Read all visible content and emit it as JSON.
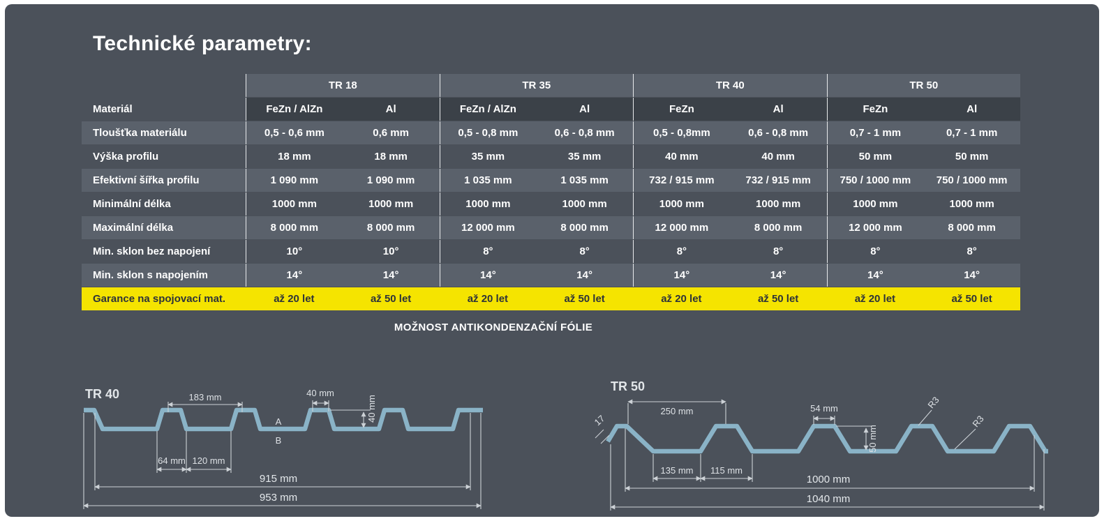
{
  "title": "Technické parametry:",
  "table": {
    "material_label": "Materiál",
    "groups": [
      {
        "name": "TR 18",
        "cols": [
          "FeZn / AlZn",
          "Al"
        ]
      },
      {
        "name": "TR 35",
        "cols": [
          "FeZn / AlZn",
          "Al"
        ]
      },
      {
        "name": "TR 40",
        "cols": [
          "FeZn",
          "Al"
        ]
      },
      {
        "name": "TR 50",
        "cols": [
          "FeZn",
          "Al"
        ]
      }
    ],
    "rows": [
      {
        "label": "Tloušťka materiálu",
        "values": [
          "0,5 - 0,6 mm",
          "0,6 mm",
          "0,5 - 0,8 mm",
          "0,6 - 0,8 mm",
          "0,5 - 0,8mm",
          "0,6 - 0,8 mm",
          "0,7 - 1 mm",
          "0,7 - 1 mm"
        ]
      },
      {
        "label": "Výška profilu",
        "values": [
          "18 mm",
          "18 mm",
          "35 mm",
          "35 mm",
          "40 mm",
          "40 mm",
          "50 mm",
          "50 mm"
        ]
      },
      {
        "label": "Efektivní šířka profilu",
        "values": [
          "1 090 mm",
          "1 090 mm",
          "1 035 mm",
          "1 035 mm",
          "732 / 915 mm",
          "732 / 915 mm",
          "750 / 1000 mm",
          "750 / 1000 mm"
        ]
      },
      {
        "label": "Minimální délka",
        "values": [
          "1000 mm",
          "1000 mm",
          "1000 mm",
          "1000 mm",
          "1000 mm",
          "1000 mm",
          "1000 mm",
          "1000 mm"
        ]
      },
      {
        "label": "Maximální délka",
        "values": [
          "8 000 mm",
          "8 000 mm",
          "12 000 mm",
          "8 000 mm",
          "12 000 mm",
          "8 000 mm",
          "12 000 mm",
          "8 000 mm"
        ]
      },
      {
        "label": "Min. sklon bez napojení",
        "values": [
          "10°",
          "10°",
          "8°",
          "8°",
          "8°",
          "8°",
          "8°",
          "8°"
        ]
      },
      {
        "label": "Min. sklon s napojením",
        "values": [
          "14°",
          "14°",
          "14°",
          "14°",
          "14°",
          "14°",
          "14°",
          "14°"
        ]
      },
      {
        "label": "Garance na spojovací mat.",
        "values": [
          "až 20 let",
          "až 50 let",
          "až 20 let",
          "až 50 let",
          "až 20 let",
          "až 50 let",
          "až 20 let",
          "až 50 let"
        ],
        "highlight": true
      }
    ],
    "footnote": "MOŽNOST ANTIKONDENZAČNÍ FÓLIE"
  },
  "diagrams": {
    "tr40": {
      "label": "TR 40",
      "dim_pitch": "183 mm",
      "dim_rib_top": "40 mm",
      "dim_height": "40 mm",
      "label_a": "A",
      "label_b": "B",
      "dim_rib_bottom": "64 mm",
      "dim_valley": "120 mm",
      "dim_cover_width": "915 mm",
      "dim_total_width": "953 mm"
    },
    "tr50": {
      "label": "TR 50",
      "dim_edge": "17",
      "dim_pitch": "250 mm",
      "dim_rib_top": "54 mm",
      "dim_height": "50 mm",
      "dim_radius_1": "R3",
      "dim_radius_2": "R3",
      "dim_valley": "135 mm",
      "dim_rib_bottom": "115 mm",
      "dim_cover_width": "1000 mm",
      "dim_total_width": "1040 mm"
    }
  },
  "colors": {
    "card_bg": "#4b515a",
    "band": "#5a616b",
    "header_band_dark": "#3b4148",
    "highlight": "#f5e400",
    "highlight_text": "#2d3339",
    "profile": "#8ab3c7",
    "dim": "#ccd1d6"
  }
}
